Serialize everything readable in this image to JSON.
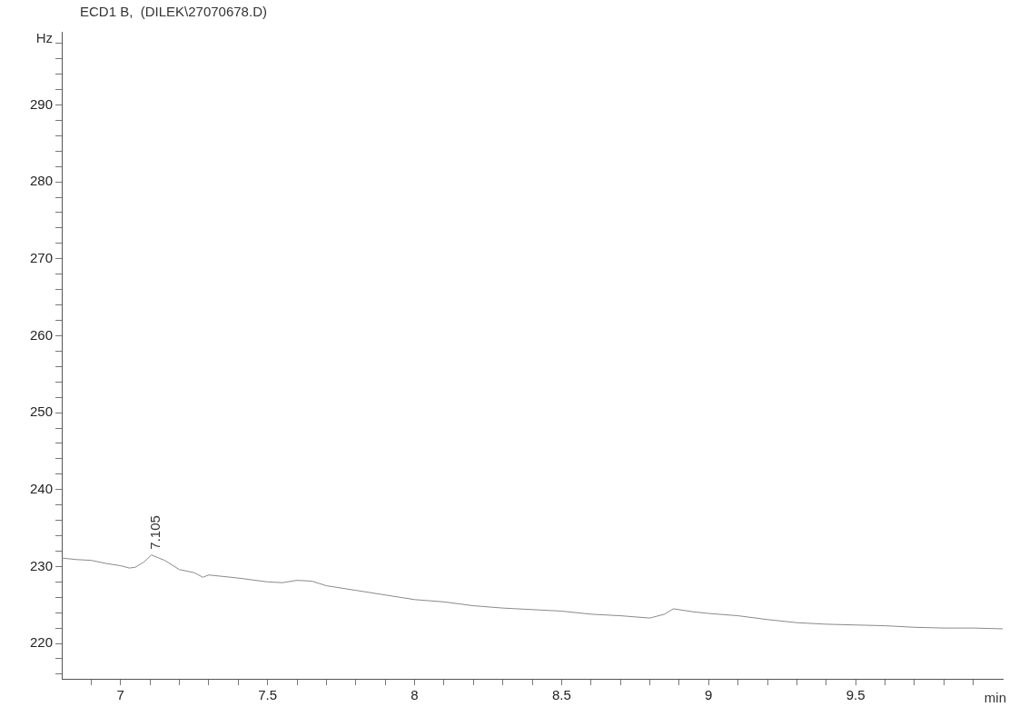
{
  "chart_data": {
    "type": "line",
    "title": "ECD1 B,  (DILEK\\27070678.D)",
    "xlabel": "min",
    "ylabel": "Hz",
    "x": [
      6.8,
      6.85,
      6.9,
      6.95,
      7.0,
      7.03,
      7.05,
      7.08,
      7.105,
      7.13,
      7.15,
      7.2,
      7.25,
      7.28,
      7.3,
      7.4,
      7.5,
      7.55,
      7.6,
      7.65,
      7.7,
      7.8,
      7.9,
      8.0,
      8.1,
      8.2,
      8.3,
      8.4,
      8.5,
      8.6,
      8.7,
      8.8,
      8.85,
      8.88,
      8.95,
      9.0,
      9.1,
      9.2,
      9.3,
      9.4,
      9.5,
      9.6,
      9.7,
      9.8,
      9.9,
      10.0
    ],
    "series": [
      {
        "color": "#8a8a8a",
        "values": [
          231.1,
          230.9,
          230.8,
          230.4,
          230.1,
          229.8,
          229.9,
          230.6,
          231.5,
          231.1,
          230.8,
          229.6,
          229.2,
          228.6,
          228.9,
          228.5,
          228.0,
          227.9,
          228.2,
          228.1,
          227.5,
          226.9,
          226.3,
          225.7,
          225.4,
          224.9,
          224.6,
          224.4,
          224.2,
          223.8,
          223.6,
          223.3,
          223.8,
          224.5,
          224.1,
          223.9,
          223.6,
          223.1,
          222.7,
          222.5,
          222.4,
          222.3,
          222.1,
          222.0,
          222.0,
          221.9
        ]
      }
    ],
    "xlim": [
      6.8,
      10.0
    ],
    "xticks": [
      {
        "value": 6.9,
        "label": null
      },
      7,
      {
        "value": 7.1,
        "label": null
      },
      {
        "value": 7.2,
        "label": null
      },
      {
        "value": 7.3,
        "label": null
      },
      {
        "value": 7.4,
        "label": null
      },
      7.5,
      {
        "value": 7.6,
        "label": null
      },
      {
        "value": 7.7,
        "label": null
      },
      {
        "value": 7.8,
        "label": null
      },
      {
        "value": 7.9,
        "label": null
      },
      8,
      {
        "value": 8.1,
        "label": null
      },
      {
        "value": 8.2,
        "label": null
      },
      {
        "value": 8.3,
        "label": null
      },
      {
        "value": 8.4,
        "label": null
      },
      8.5,
      {
        "value": 8.6,
        "label": null
      },
      {
        "value": 8.7,
        "label": null
      },
      {
        "value": 8.8,
        "label": null
      },
      {
        "value": 8.9,
        "label": null
      },
      9,
      {
        "value": 9.1,
        "label": null
      },
      {
        "value": 9.2,
        "label": null
      },
      {
        "value": 9.3,
        "label": null
      },
      {
        "value": 9.4,
        "label": null
      },
      9.5,
      {
        "value": 9.6,
        "label": null
      },
      {
        "value": 9.7,
        "label": null
      },
      {
        "value": 9.8,
        "label": null
      },
      {
        "value": 9.9,
        "label": null
      }
    ],
    "ylim": [
      215.4,
      299.5
    ],
    "yticks": [
      {
        "value": 216,
        "label": null
      },
      {
        "value": 218,
        "label": null
      },
      220,
      {
        "value": 222,
        "label": null
      },
      {
        "value": 224,
        "label": null
      },
      {
        "value": 226,
        "label": null
      },
      {
        "value": 228,
        "label": null
      },
      230,
      {
        "value": 232,
        "label": null
      },
      {
        "value": 234,
        "label": null
      },
      {
        "value": 236,
        "label": null
      },
      {
        "value": 238,
        "label": null
      },
      240,
      {
        "value": 242,
        "label": null
      },
      {
        "value": 244,
        "label": null
      },
      {
        "value": 246,
        "label": null
      },
      {
        "value": 248,
        "label": null
      },
      250,
      {
        "value": 252,
        "label": null
      },
      {
        "value": 254,
        "label": null
      },
      {
        "value": 256,
        "label": null
      },
      {
        "value": 258,
        "label": null
      },
      260,
      {
        "value": 262,
        "label": null
      },
      {
        "value": 264,
        "label": null
      },
      {
        "value": 266,
        "label": null
      },
      {
        "value": 268,
        "label": null
      },
      270,
      {
        "value": 272,
        "label": null
      },
      {
        "value": 274,
        "label": null
      },
      {
        "value": 276,
        "label": null
      },
      {
        "value": 278,
        "label": null
      },
      280,
      {
        "value": 282,
        "label": null
      },
      {
        "value": 284,
        "label": null
      },
      {
        "value": 286,
        "label": null
      },
      {
        "value": 288,
        "label": null
      },
      290,
      {
        "value": 292,
        "label": null
      },
      {
        "value": 294,
        "label": null
      },
      {
        "value": 296,
        "label": null
      },
      {
        "value": 298,
        "label": null
      }
    ],
    "annotations": [
      {
        "text": "7.105",
        "x": 7.105,
        "y": 231.5
      }
    ],
    "grid": false,
    "legend": false,
    "marker": "none",
    "line_style": "solid"
  }
}
